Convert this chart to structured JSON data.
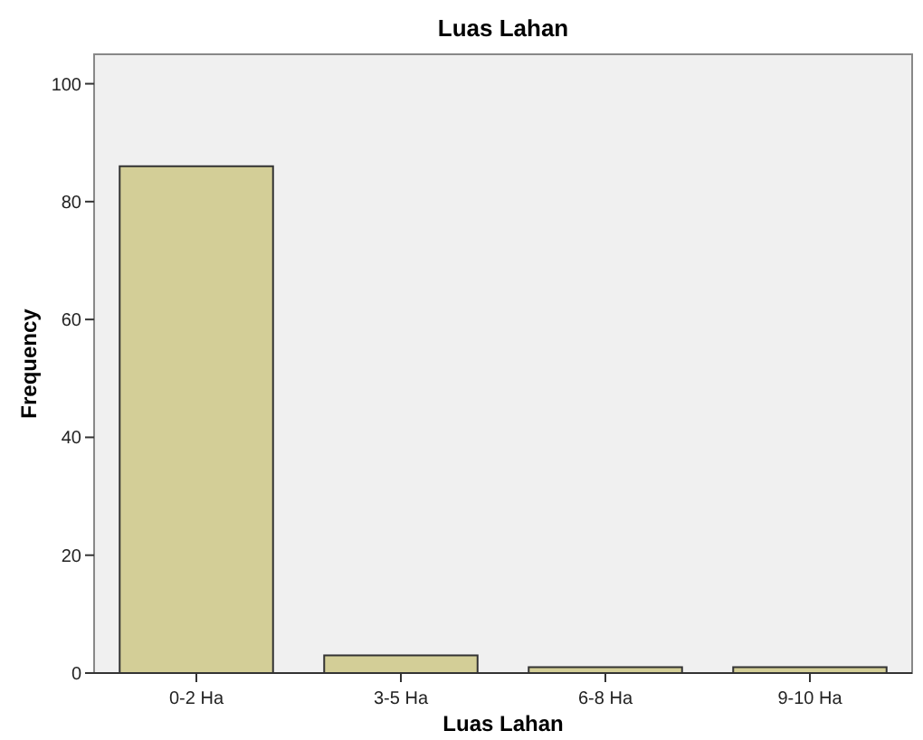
{
  "chart_data": {
    "type": "bar",
    "title": "Luas Lahan",
    "xlabel": "Luas Lahan",
    "ylabel": "Frequency",
    "categories": [
      "0-2 Ha",
      "3-5 Ha",
      "6-8 Ha",
      "9-10 Ha"
    ],
    "values": [
      86,
      3,
      1,
      1
    ],
    "color": "#d3ce97",
    "ylim": [
      0,
      105
    ],
    "yticks": [
      0,
      20,
      40,
      60,
      80,
      100
    ],
    "grid": false
  }
}
